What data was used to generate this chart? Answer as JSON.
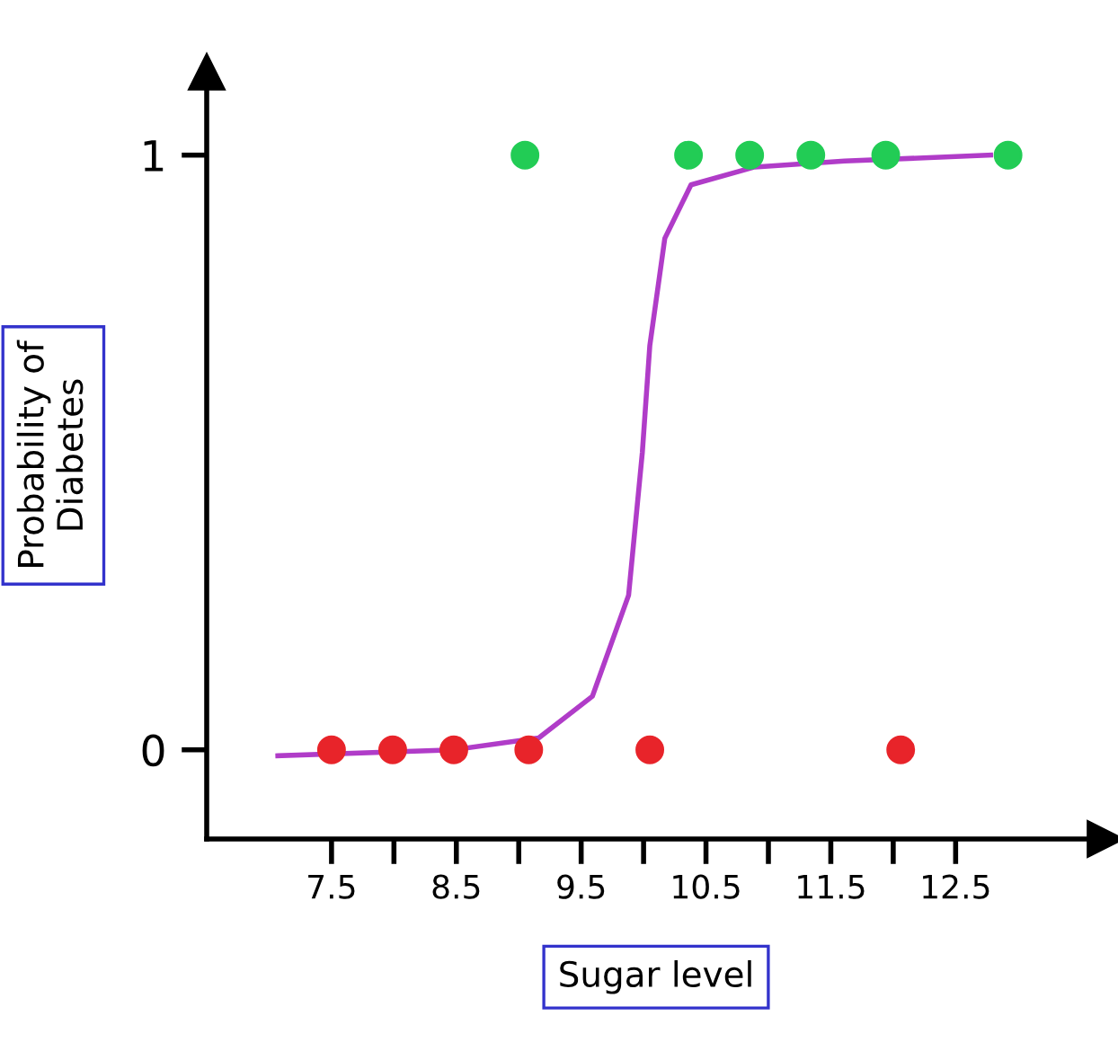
{
  "chart_data": {
    "type": "scatter",
    "xlabel": "Sugar level",
    "ylabel": "Probability of\nDiabetes",
    "xlim": [
      6.5,
      13.7
    ],
    "ylim": [
      -0.15,
      1.14
    ],
    "xticks": [
      7.5,
      {
        "value": 8,
        "label": null
      },
      8.5,
      {
        "value": 9,
        "label": null
      },
      9.5,
      {
        "value": 10,
        "label": null
      },
      10.5,
      {
        "value": 11,
        "label": null
      },
      11.5,
      {
        "value": 12,
        "label": null
      },
      12.5
    ],
    "yticks": [
      0,
      1
    ],
    "grid": false,
    "legend": false,
    "series": [
      {
        "type": "line",
        "marker": "none",
        "color": "#b03cc8",
        "x": [
          7.07,
          8.48,
          9.16,
          9.59,
          9.88,
          9.99,
          10.05,
          10.17,
          10.38,
          10.89,
          11.61,
          12.78
        ],
        "values": [
          -0.01,
          0.0,
          0.02,
          0.09,
          0.26,
          0.5,
          0.68,
          0.86,
          0.95,
          0.98,
          0.99,
          1.0
        ]
      },
      {
        "marker": "circle",
        "color": "#22cc55",
        "x": [
          9.05,
          10.36,
          10.85,
          11.34,
          11.94,
          12.92
        ],
        "values": [
          1,
          1,
          1,
          1,
          1,
          1
        ]
      },
      {
        "marker": "circle",
        "color": "#e8242a",
        "x": [
          7.5,
          7.99,
          8.48,
          9.08,
          10.05,
          12.06
        ],
        "values": [
          0,
          0,
          0,
          0,
          0,
          0
        ]
      }
    ]
  }
}
